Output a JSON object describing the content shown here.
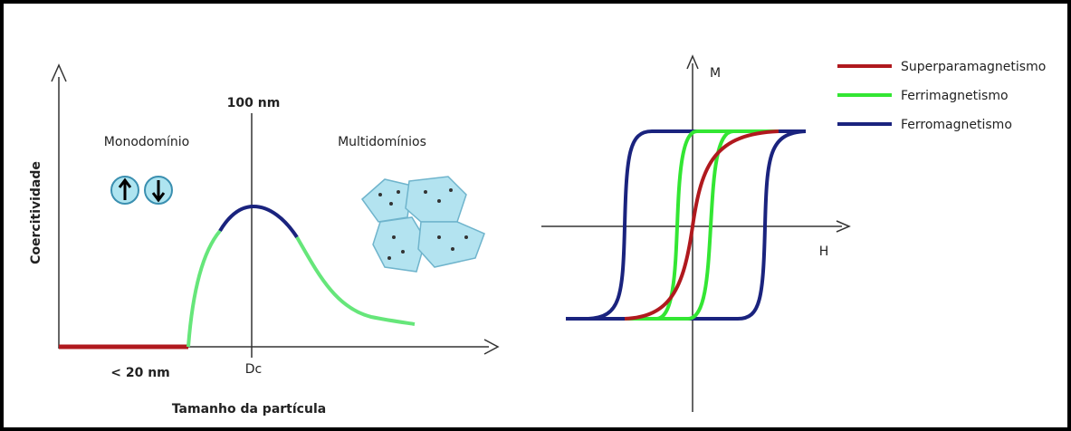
{
  "left_panel": {
    "y_axis_label": "Coercitividade",
    "x_axis_label": "Tamanho da partícula",
    "critical_size_label": "100 nm",
    "critical_size_tick": "Dc",
    "small_size_label": "< 20 nm",
    "single_domain_label": "Monodomínio",
    "multi_domain_label": "Multidomínios"
  },
  "right_panel": {
    "y_axis_label": "M",
    "x_axis_label": "H",
    "legend": [
      {
        "name": "Superparamagnetismo",
        "color": "#b0191e"
      },
      {
        "name": "Ferrimagnetismo",
        "color": "#33e633"
      },
      {
        "name": "Ferromagnetismo",
        "color": "#1a237e"
      }
    ]
  }
}
